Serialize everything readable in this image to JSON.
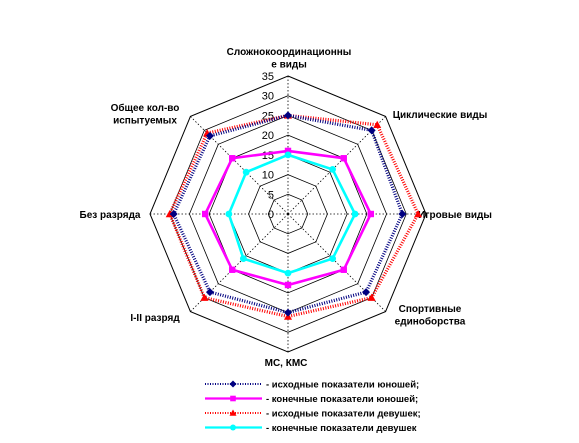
{
  "chart_data": {
    "type": "radar",
    "axes": [
      "Сложнокоординационные виды",
      "Циклические виды",
      "Игровые виды",
      "Спортивные единоборства",
      "МС, КМС",
      "I-II разряд",
      "Без разряда",
      "Общее кол-во испытуемых"
    ],
    "axis_label_lines": [
      [
        "Сложнокоординационны",
        "е виды"
      ],
      [
        "Циклические виды"
      ],
      [
        "Игровые виды"
      ],
      [
        "Спортивные",
        "единоборства"
      ],
      [
        "МС, КМС"
      ],
      [
        "I-II разряд"
      ],
      [
        "Без разряда"
      ],
      [
        "Общее кол-во",
        "испытуемых"
      ]
    ],
    "rlim": [
      0,
      35
    ],
    "ticks": [
      0,
      5,
      10,
      15,
      20,
      25,
      30,
      35
    ],
    "grid": true,
    "series": [
      {
        "name": "- исходные показатели юношей;",
        "color": "#000080",
        "marker": "diamond",
        "line": "dotted",
        "values": [
          25,
          30,
          29,
          28,
          25,
          28,
          29,
          28
        ]
      },
      {
        "name": "- конечные показатели юношей;",
        "color": "#ff00ff",
        "marker": "square",
        "line": "solid",
        "values": [
          16,
          20,
          21,
          20,
          18,
          20,
          21,
          20
        ]
      },
      {
        "name": "- исходные показатели девушек;",
        "color": "#ff0000",
        "marker": "triangle",
        "line": "dotted",
        "values": [
          25,
          32,
          33,
          30,
          26,
          30,
          30,
          29
        ]
      },
      {
        "name": "- конечные показатели девушек",
        "color": "#00ffff",
        "marker": "circle",
        "line": "solid",
        "values": [
          15,
          16,
          17,
          16,
          15,
          16,
          15,
          15
        ]
      }
    ]
  }
}
